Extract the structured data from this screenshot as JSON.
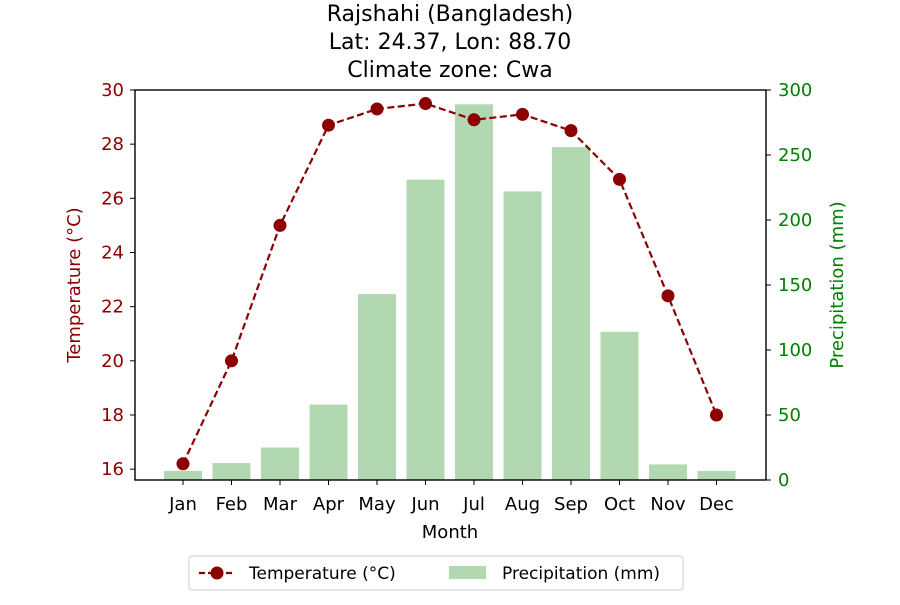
{
  "chart_data": {
    "type": "bar+line",
    "title_lines": [
      "Rajshahi (Bangladesh)",
      "Lat: 24.37, Lon: 88.70",
      "Climate zone: Cwa"
    ],
    "xlabel": "Month",
    "categories": [
      "Jan",
      "Feb",
      "Mar",
      "Apr",
      "May",
      "Jun",
      "Jul",
      "Aug",
      "Sep",
      "Oct",
      "Nov",
      "Dec"
    ],
    "temperature": {
      "name": "Temperature (°C)",
      "axis_label": "Temperature (°C)",
      "ylim": [
        15.6,
        30.0
      ],
      "ticks": [
        16,
        18,
        20,
        22,
        24,
        26,
        28,
        30
      ],
      "values": [
        16.2,
        20.0,
        25.0,
        28.7,
        29.3,
        29.5,
        28.9,
        29.1,
        28.5,
        26.7,
        22.4,
        18.0
      ],
      "color": "#8b0000",
      "style": "dashed line with circle markers"
    },
    "precipitation": {
      "name": "Precipitation (mm)",
      "axis_label": "Precipitation (mm)",
      "ylim": [
        0,
        300
      ],
      "ticks": [
        0,
        50,
        100,
        150,
        200,
        250,
        300
      ],
      "values": [
        7,
        13,
        25,
        58,
        143,
        231,
        289,
        222,
        256,
        114,
        12,
        7
      ],
      "color": "#b2d8b2",
      "style": "bars"
    },
    "legend_position": "bottom-center"
  },
  "colors": {
    "temp_axis": "#8b0000",
    "precip_axis": "#008000"
  }
}
